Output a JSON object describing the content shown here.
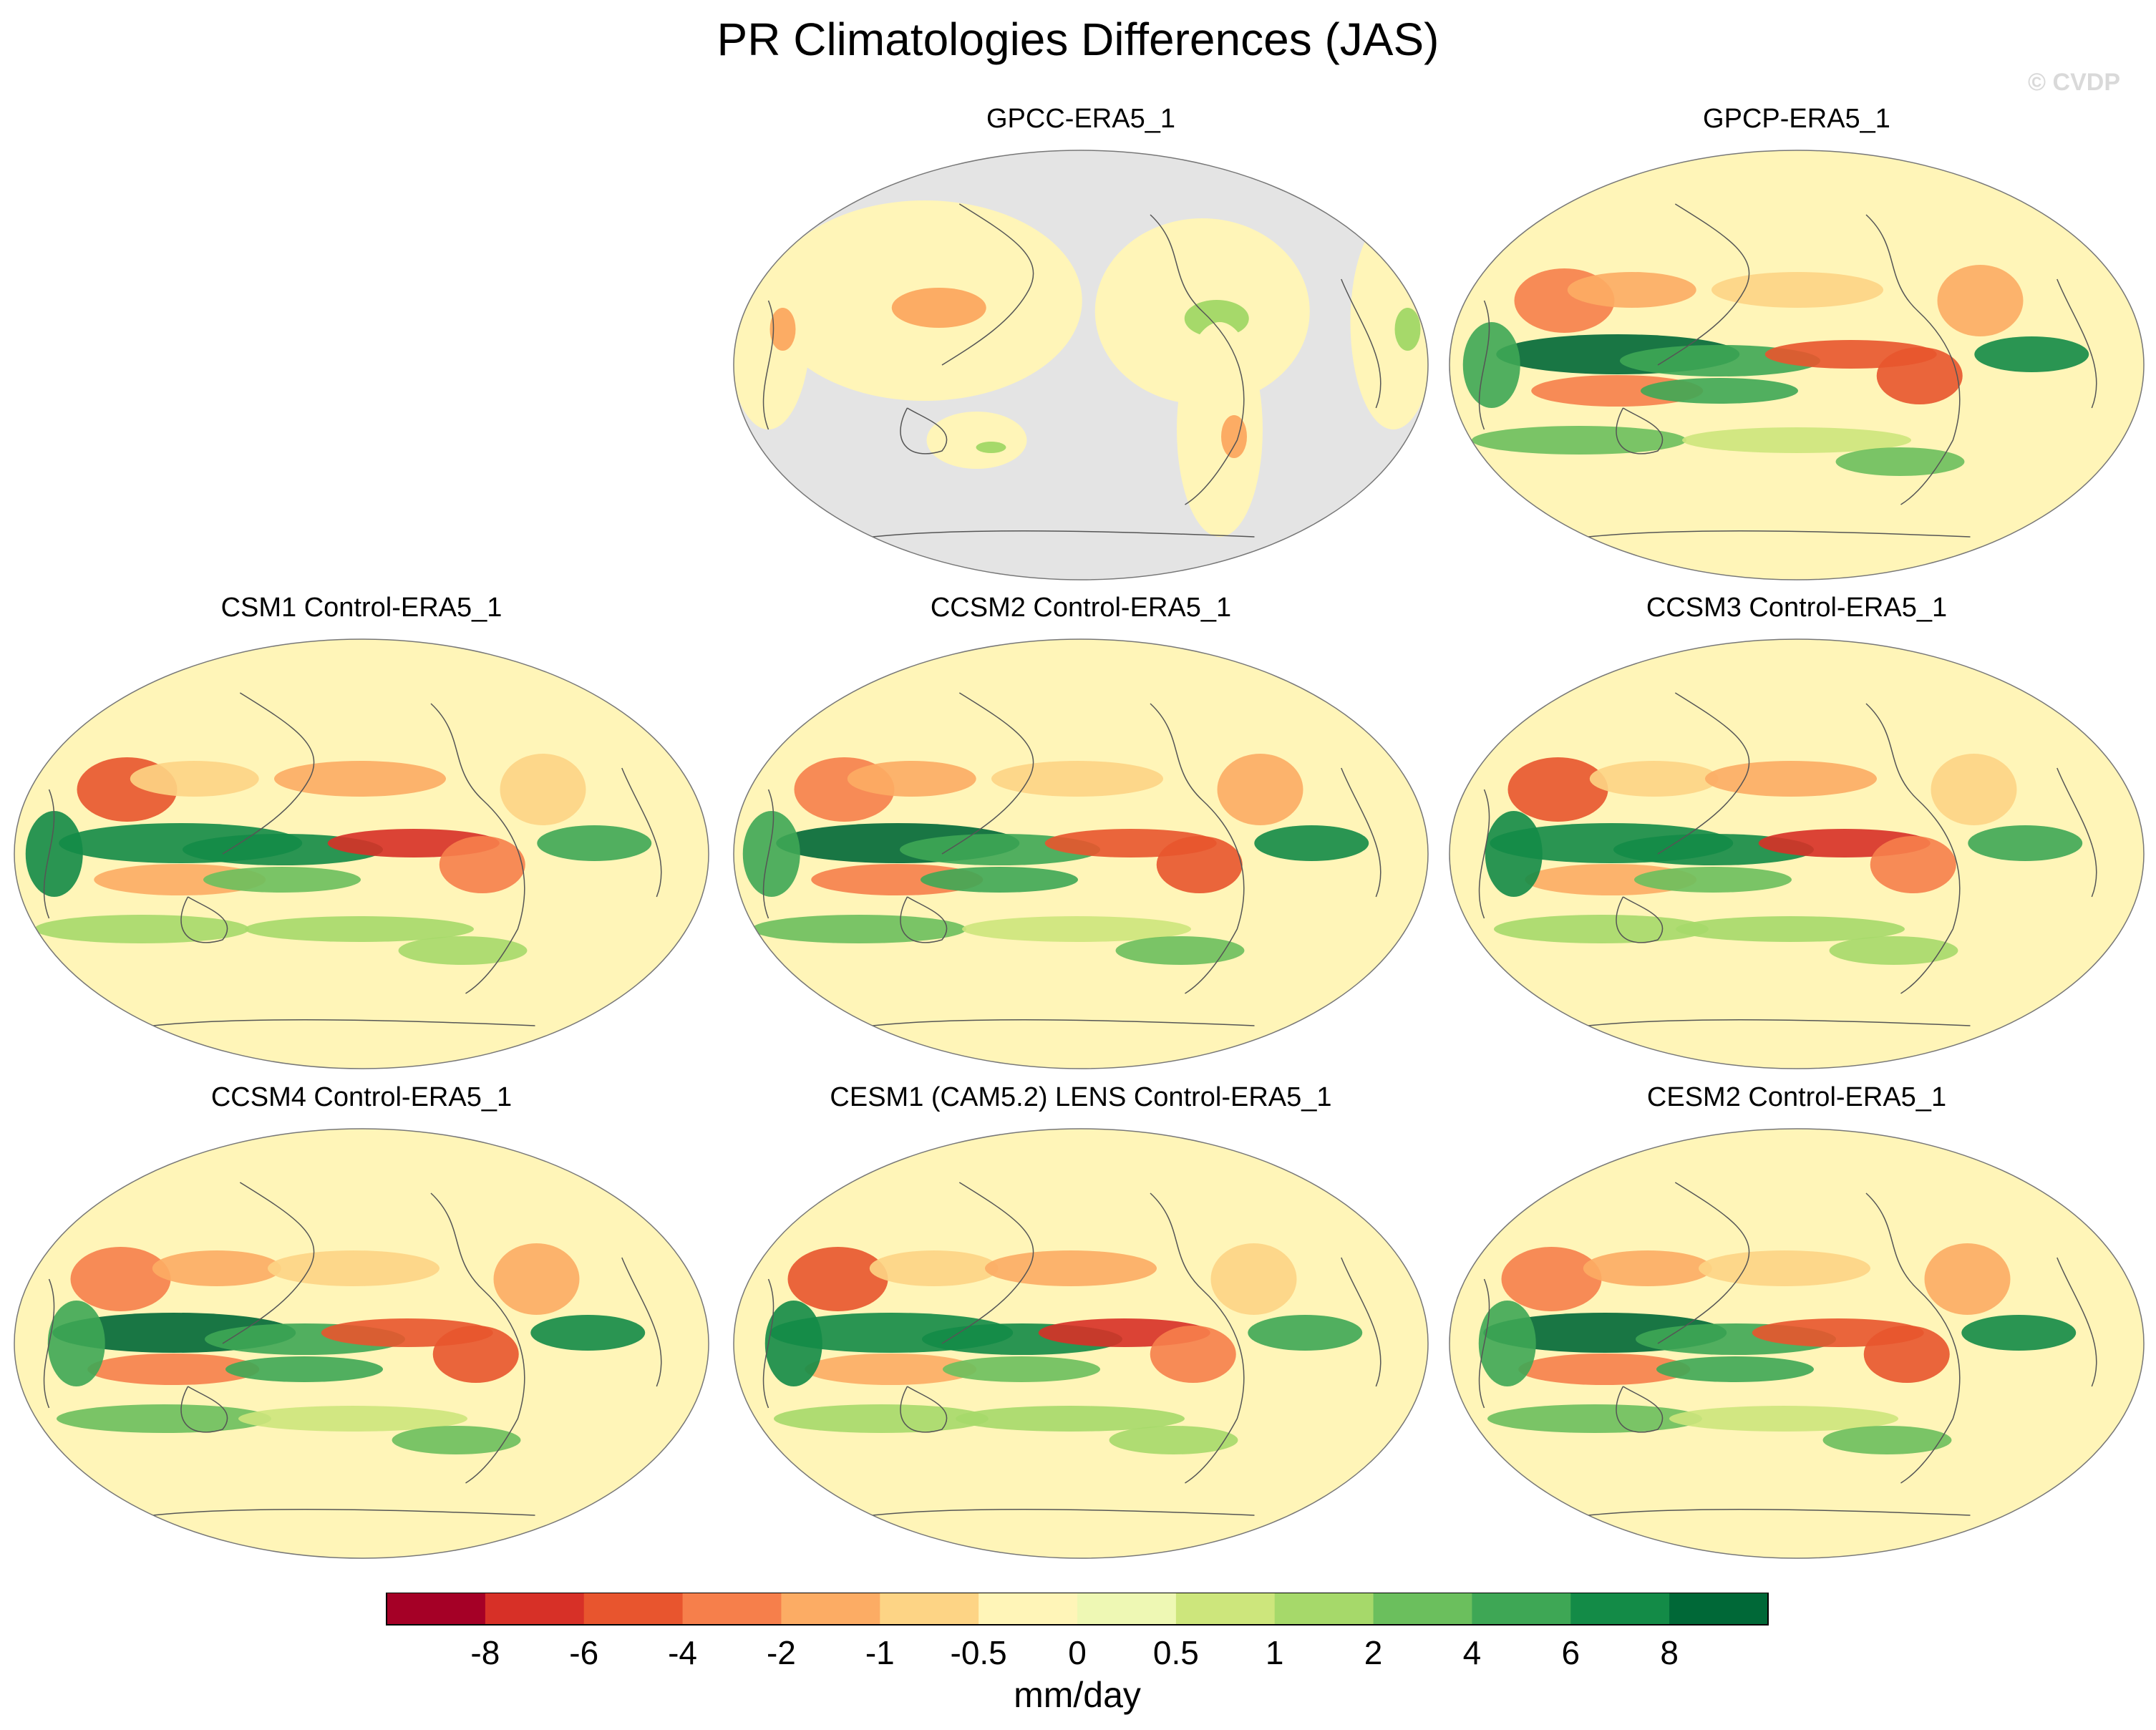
{
  "title": "PR Climatologies Differences (JAS)",
  "watermark": "© CVDP",
  "colors": {
    "levels": [
      "#a50026",
      "#d73027",
      "#e8552e",
      "#f67f4b",
      "#fcac64",
      "#fdd485",
      "#fff5b8",
      "#eef8b4",
      "#cde67c",
      "#a6d96a",
      "#6bbf5d",
      "#3ea755",
      "#138b47",
      "#006837"
    ],
    "land_mask": "#e4e4e4",
    "coast": "#555555"
  },
  "panels": [
    {
      "title": "GPCC-ERA5_1",
      "ocean_masked": true
    },
    {
      "title": "GPCP-ERA5_1",
      "ocean_masked": false
    },
    {
      "title": "CSM1 Control-ERA5_1",
      "ocean_masked": false
    },
    {
      "title": "CCSM2 Control-ERA5_1",
      "ocean_masked": false
    },
    {
      "title": "CCSM3 Control-ERA5_1",
      "ocean_masked": false
    },
    {
      "title": "CCSM4 Control-ERA5_1",
      "ocean_masked": false
    },
    {
      "title": "CESM1 (CAM5.2) LENS Control-ERA5_1",
      "ocean_masked": false
    },
    {
      "title": "CESM2 Control-ERA5_1",
      "ocean_masked": false
    }
  ],
  "chart_data": {
    "type": "heatmap",
    "variable": "PR",
    "season": "JAS",
    "projection": "Robinson, centered on the Pacific",
    "colorbar": {
      "unit_label": "mm/day",
      "levels": [
        -8,
        -6,
        -4,
        -2,
        -1,
        -0.5,
        0,
        0.5,
        1,
        2,
        4,
        6,
        8
      ],
      "tick_labels": [
        "-8",
        "-6",
        "-4",
        "-2",
        "-1",
        "-0.5",
        "0",
        "0.5",
        "1",
        "2",
        "4",
        "6",
        "8"
      ]
    }
  }
}
